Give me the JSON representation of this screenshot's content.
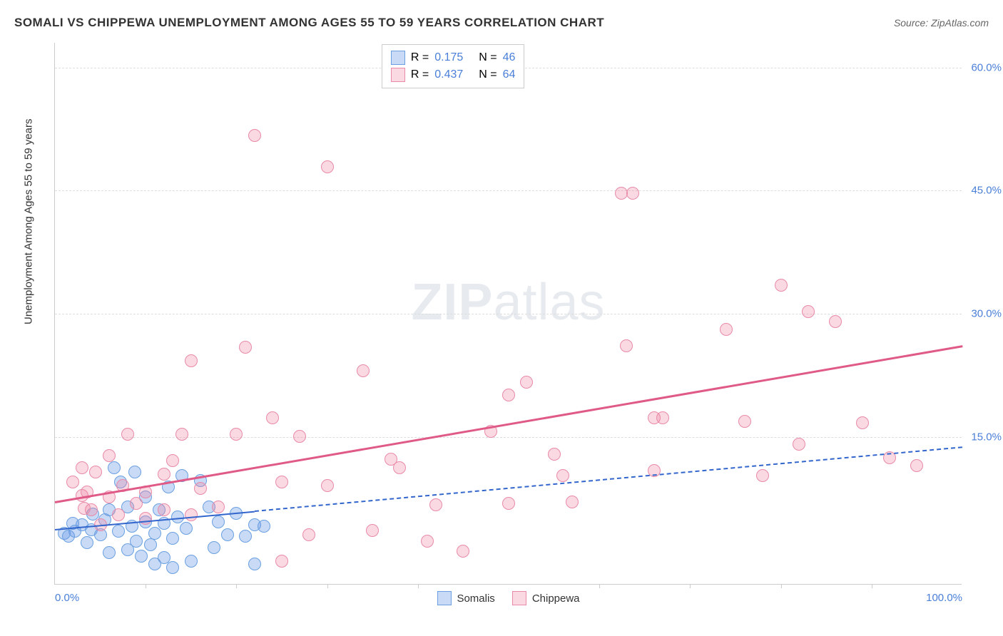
{
  "header": {
    "title": "SOMALI VS CHIPPEWA UNEMPLOYMENT AMONG AGES 55 TO 59 YEARS CORRELATION CHART",
    "source": "Source: ZipAtlas.com"
  },
  "watermark": {
    "bold": "ZIP",
    "rest": "atlas"
  },
  "chart": {
    "type": "scatter",
    "y_axis_label": "Unemployment Among Ages 55 to 59 years",
    "xlim": [
      0,
      100
    ],
    "ylim": [
      -3,
      63
    ],
    "x_ticks": [
      0,
      50,
      100
    ],
    "x_tick_labels": [
      "0.0%",
      "",
      "100.0%"
    ],
    "x_minor_ticks": [
      10,
      20,
      30,
      40,
      60,
      70,
      80,
      90
    ],
    "y_gridlines": [
      15,
      30,
      45,
      60
    ],
    "y_tick_labels": [
      "15.0%",
      "30.0%",
      "45.0%",
      "60.0%"
    ],
    "background_color": "#ffffff",
    "grid_color": "#dddddd",
    "axis_color": "#cccccc",
    "tick_label_color": "#4a7fd8",
    "marker_radius": 9,
    "marker_border_width": 1.5,
    "series": [
      {
        "name": "Somalis",
        "fill": "rgba(100,150,230,0.35)",
        "stroke": "#6aa0e0",
        "R": "0.175",
        "N": "46",
        "trend": {
          "x1": 0,
          "y1": 3.8,
          "x2": 100,
          "y2": 13.8,
          "color": "#3366cc",
          "dash": true,
          "width": 2.2,
          "solid_until_x": 22
        },
        "points": [
          [
            1,
            3.2
          ],
          [
            1.5,
            2.8
          ],
          [
            2,
            4.4
          ],
          [
            2.2,
            3.4
          ],
          [
            3,
            4.2
          ],
          [
            3.5,
            2.0
          ],
          [
            4,
            3.6
          ],
          [
            4.2,
            5.5
          ],
          [
            5,
            3.0
          ],
          [
            5.5,
            4.8
          ],
          [
            6,
            0.8
          ],
          [
            6,
            6.0
          ],
          [
            6.5,
            11.2
          ],
          [
            7,
            3.4
          ],
          [
            7.2,
            9.4
          ],
          [
            8,
            1.2
          ],
          [
            8,
            6.4
          ],
          [
            8.5,
            4.0
          ],
          [
            8.8,
            10.6
          ],
          [
            9,
            2.2
          ],
          [
            9.5,
            0.4
          ],
          [
            10,
            4.6
          ],
          [
            10,
            7.6
          ],
          [
            10.5,
            1.8
          ],
          [
            11,
            -0.6
          ],
          [
            11,
            3.2
          ],
          [
            11.5,
            6.0
          ],
          [
            12,
            0.2
          ],
          [
            12,
            4.4
          ],
          [
            12.5,
            8.8
          ],
          [
            13,
            -1.0
          ],
          [
            13,
            2.6
          ],
          [
            13.5,
            5.2
          ],
          [
            14,
            10.2
          ],
          [
            14.5,
            3.8
          ],
          [
            15,
            -0.2
          ],
          [
            16,
            9.6
          ],
          [
            17,
            6.4
          ],
          [
            17.5,
            1.4
          ],
          [
            18,
            4.6
          ],
          [
            19,
            3.0
          ],
          [
            20,
            5.6
          ],
          [
            21,
            2.8
          ],
          [
            22,
            4.2
          ],
          [
            22,
            -0.6
          ],
          [
            23,
            4.0
          ]
        ]
      },
      {
        "name": "Chippewa",
        "fill": "rgba(240,130,160,0.30)",
        "stroke": "#e88aa8",
        "R": "0.437",
        "N": "64",
        "trend": {
          "x1": 0,
          "y1": 7.2,
          "x2": 100,
          "y2": 26.2,
          "color": "#e05a88",
          "dash": false,
          "width": 3
        },
        "points": [
          [
            2,
            9.4
          ],
          [
            3,
            7.8
          ],
          [
            3,
            11.2
          ],
          [
            3.5,
            8.2
          ],
          [
            4,
            6.0
          ],
          [
            4.5,
            10.6
          ],
          [
            5,
            4.2
          ],
          [
            6,
            7.6
          ],
          [
            6,
            12.6
          ],
          [
            7,
            5.4
          ],
          [
            7.5,
            9.0
          ],
          [
            8,
            15.2
          ],
          [
            9,
            6.8
          ],
          [
            10,
            5.0
          ],
          [
            10,
            8.2
          ],
          [
            12,
            10.4
          ],
          [
            12,
            6.0
          ],
          [
            13,
            12.0
          ],
          [
            14,
            15.2
          ],
          [
            15,
            5.4
          ],
          [
            15,
            24.2
          ],
          [
            16,
            8.6
          ],
          [
            18,
            6.4
          ],
          [
            20,
            15.2
          ],
          [
            21,
            25.8
          ],
          [
            22,
            51.6
          ],
          [
            24,
            17.2
          ],
          [
            25,
            -0.2
          ],
          [
            25,
            9.4
          ],
          [
            27,
            15.0
          ],
          [
            28,
            3.0
          ],
          [
            30,
            47.8
          ],
          [
            30,
            9.0
          ],
          [
            34,
            23.0
          ],
          [
            35,
            3.5
          ],
          [
            37,
            12.2
          ],
          [
            38,
            11.2
          ],
          [
            41,
            2.2
          ],
          [
            42,
            6.6
          ],
          [
            45,
            1.0
          ],
          [
            48,
            15.6
          ],
          [
            50,
            20.0
          ],
          [
            50,
            6.8
          ],
          [
            52,
            21.6
          ],
          [
            55,
            12.8
          ],
          [
            56,
            10.2
          ],
          [
            57,
            7.0
          ],
          [
            62.4,
            44.6
          ],
          [
            63,
            26.0
          ],
          [
            63.7,
            44.6
          ],
          [
            66,
            17.2
          ],
          [
            66,
            10.8
          ],
          [
            67,
            17.2
          ],
          [
            74,
            28.0
          ],
          [
            76,
            16.8
          ],
          [
            78,
            10.2
          ],
          [
            80,
            33.4
          ],
          [
            82,
            14.0
          ],
          [
            83,
            30.2
          ],
          [
            86,
            29.0
          ],
          [
            89,
            16.6
          ],
          [
            92,
            12.4
          ],
          [
            95,
            11.4
          ],
          [
            3.2,
            6.2
          ]
        ]
      }
    ],
    "stats_legend": {
      "R_label": "R =",
      "N_label": "N ="
    },
    "bottom_legend": {
      "items": [
        "Somalis",
        "Chippewa"
      ]
    }
  }
}
